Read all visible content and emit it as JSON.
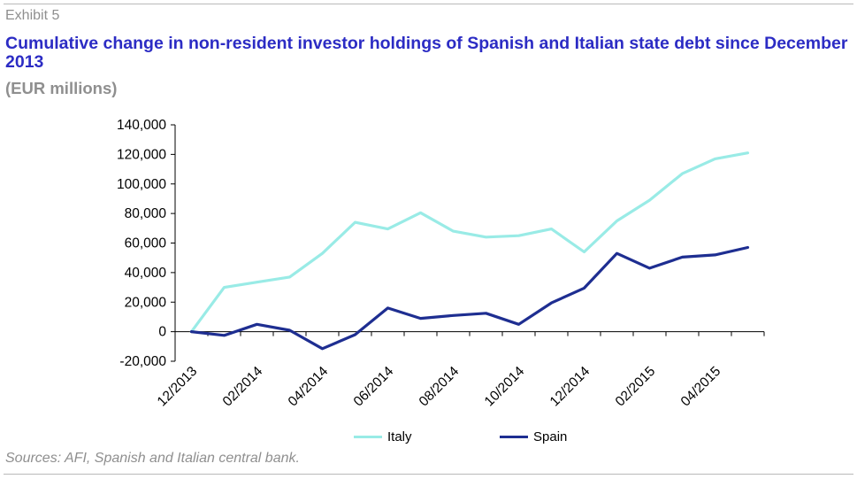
{
  "header": {
    "exhibit_label": "Exhibit 5",
    "title": "Cumulative change in non-resident investor holdings of Spanish and Italian state debt since December 2013",
    "unit": "(EUR millions)"
  },
  "footer": {
    "source": "Sources: AFI, Spanish and Italian central bank."
  },
  "chart_data": {
    "type": "line",
    "title": "Cumulative change in non-resident investor holdings of Spanish and Italian state debt since December 2013",
    "subtitle": "(EUR millions)",
    "xlabel": "",
    "ylabel": "",
    "x": [
      "12/2013",
      "01/2014",
      "02/2014",
      "03/2014",
      "04/2014",
      "05/2014",
      "06/2014",
      "07/2014",
      "08/2014",
      "09/2014",
      "10/2014",
      "11/2014",
      "12/2014",
      "01/2015",
      "02/2015",
      "03/2015",
      "04/2015",
      "05/2015"
    ],
    "x_tick_labels": [
      "12/2013",
      "02/2014",
      "04/2014",
      "06/2014",
      "08/2014",
      "10/2014",
      "12/2014",
      "02/2015",
      "04/2015"
    ],
    "ylim": [
      -20000,
      140000
    ],
    "y_ticks": [
      -20000,
      0,
      20000,
      40000,
      60000,
      80000,
      100000,
      120000,
      140000
    ],
    "y_tick_labels": [
      "-20,000",
      "0",
      "20,000",
      "40,000",
      "60,000",
      "80,000",
      "100,000",
      "120,000",
      "140,000"
    ],
    "grid": false,
    "legend_position": "bottom",
    "series": [
      {
        "name": "Italy",
        "color": "#99ebe6",
        "values": [
          0,
          30000,
          33500,
          37000,
          53000,
          74000,
          69500,
          80500,
          68000,
          64000,
          65000,
          69500,
          54000,
          75000,
          89000,
          107000,
          117000,
          121000
        ]
      },
      {
        "name": "Spain",
        "color": "#1e2e91",
        "values": [
          0,
          -2500,
          5000,
          1000,
          -11500,
          -2000,
          16000,
          9000,
          11000,
          12500,
          5000,
          19500,
          29500,
          53000,
          43000,
          50500,
          52000,
          57000
        ]
      }
    ]
  }
}
